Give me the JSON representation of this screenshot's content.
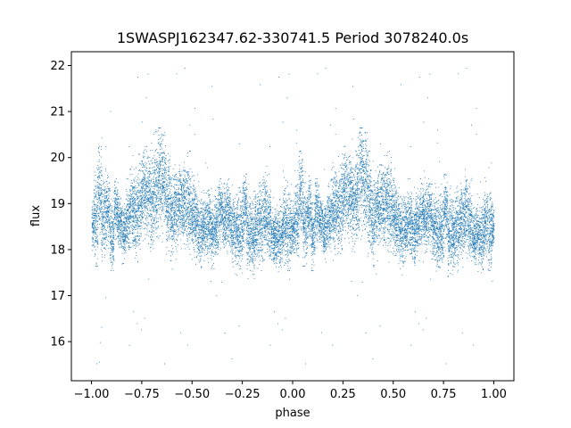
{
  "chart_data": {
    "type": "scatter",
    "title": "1SWASPJ162347.62-330741.5 Period 3078240.0s",
    "xlabel": "phase",
    "ylabel": "flux",
    "xlim": [
      -1.1,
      1.1
    ],
    "ylim": [
      15.15,
      22.3
    ],
    "x_ticks": [
      -1.0,
      -0.75,
      -0.5,
      -0.25,
      0.0,
      0.25,
      0.5,
      0.75,
      1.0
    ],
    "x_tick_labels": [
      "−1.00",
      "−0.75",
      "−0.50",
      "−0.25",
      "0.00",
      "0.25",
      "0.50",
      "0.75",
      "1.00"
    ],
    "y_ticks": [
      16,
      17,
      18,
      19,
      20,
      21,
      22
    ],
    "y_tick_labels": [
      "16",
      "17",
      "18",
      "19",
      "20",
      "21",
      "22"
    ],
    "grid": false,
    "legend": "none",
    "marker_color": "#1f77b4",
    "series": [
      {
        "x": [
          -1.0,
          -0.98,
          -0.96,
          -0.94,
          -0.92,
          -0.9,
          -0.88,
          -0.86,
          -0.84,
          -0.82,
          -0.8,
          -0.78,
          -0.76,
          -0.74,
          -0.72,
          -0.7,
          -0.68,
          -0.66,
          -0.64,
          -0.62,
          -0.6,
          -0.58,
          -0.56,
          -0.54,
          -0.52,
          -0.5,
          -0.48,
          -0.46,
          -0.44,
          -0.42,
          -0.4,
          -0.38,
          -0.36,
          -0.34,
          -0.32,
          -0.3,
          -0.28,
          -0.26,
          -0.24,
          -0.22,
          -0.2,
          -0.18,
          -0.16,
          -0.14,
          -0.12,
          -0.1,
          -0.08,
          -0.06,
          -0.04,
          -0.02,
          0.0,
          0.02,
          0.04,
          0.06,
          0.08,
          0.1,
          0.12,
          0.14,
          0.16,
          0.18,
          0.2,
          0.22,
          0.24,
          0.26,
          0.28,
          0.3,
          0.32,
          0.34,
          0.36,
          0.38,
          0.4,
          0.42,
          0.44,
          0.46,
          0.48,
          0.5,
          0.52,
          0.54,
          0.56,
          0.58,
          0.6,
          0.62,
          0.64,
          0.66,
          0.68,
          0.7,
          0.72,
          0.74,
          0.76,
          0.78,
          0.8,
          0.82,
          0.84,
          0.86,
          0.88,
          0.9,
          0.92,
          0.94,
          0.96,
          0.98,
          1.0
        ],
        "y": [
          18.5,
          18.7,
          19.2,
          18.6,
          18.9,
          18.3,
          18.9,
          18.6,
          18.4,
          18.7,
          18.9,
          18.8,
          19.0,
          19.3,
          19.2,
          19.1,
          19.3,
          19.6,
          19.5,
          19.1,
          18.7,
          18.9,
          19.0,
          19.0,
          19.0,
          18.8,
          18.6,
          18.4,
          18.5,
          18.6,
          18.4,
          18.6,
          18.8,
          18.7,
          18.8,
          18.5,
          18.4,
          18.4,
          18.9,
          18.4,
          18.3,
          18.5,
          18.6,
          18.8,
          18.6,
          18.3,
          18.3,
          18.3,
          18.6,
          18.4,
          18.5,
          18.7,
          19.2,
          18.6,
          18.9,
          18.3,
          18.9,
          18.6,
          18.4,
          18.7,
          18.9,
          18.8,
          19.0,
          19.3,
          19.2,
          19.1,
          19.3,
          19.6,
          19.5,
          19.1,
          18.7,
          18.9,
          19.0,
          19.0,
          19.0,
          18.8,
          18.6,
          18.4,
          18.5,
          18.6,
          18.4,
          18.6,
          18.8,
          18.7,
          18.8,
          18.5,
          18.4,
          18.4,
          18.9,
          18.4,
          18.3,
          18.5,
          18.6,
          18.8,
          18.6,
          18.3,
          18.3,
          18.3,
          18.6,
          18.4,
          18.5
        ],
        "y_spread_low": [
          17.9,
          17.9,
          17.9,
          17.9,
          17.9,
          17.8,
          17.9,
          17.9,
          17.9,
          17.9,
          17.9,
          18.0,
          18.0,
          18.0,
          18.2,
          18.2,
          18.3,
          18.0,
          18.0,
          17.8,
          17.8,
          17.8,
          17.9,
          17.9,
          17.8,
          17.9,
          17.8,
          17.7,
          17.8,
          17.8,
          17.8,
          17.9,
          17.9,
          17.9,
          17.9,
          17.8,
          17.7,
          17.6,
          17.7,
          17.6,
          17.6,
          17.7,
          17.8,
          17.9,
          17.8,
          17.7,
          17.7,
          17.7,
          17.7,
          17.8,
          17.9,
          17.9,
          17.9,
          17.9,
          17.9,
          17.8,
          17.9,
          17.9,
          17.9,
          17.9,
          17.9,
          18.0,
          18.0,
          18.0,
          18.2,
          18.2,
          18.3,
          18.0,
          18.0,
          17.8,
          17.8,
          17.8,
          17.9,
          17.9,
          17.8,
          17.9,
          17.8,
          17.7,
          17.8,
          17.8,
          17.8,
          17.9,
          17.9,
          17.9,
          17.9,
          17.8,
          17.7,
          17.6,
          17.7,
          17.6,
          17.6,
          17.7,
          17.8,
          17.9,
          17.8,
          17.7,
          17.7,
          17.7,
          17.7,
          17.8,
          17.9
        ],
        "y_spread_high": [
          19.0,
          20.2,
          20.0,
          19.9,
          19.4,
          19.4,
          19.3,
          19.0,
          19.2,
          19.3,
          19.8,
          19.9,
          19.9,
          20.0,
          20.0,
          20.3,
          20.4,
          20.4,
          20.3,
          19.9,
          19.7,
          19.6,
          19.6,
          19.8,
          19.9,
          19.6,
          19.4,
          19.2,
          19.2,
          19.3,
          19.3,
          19.3,
          19.3,
          19.3,
          19.3,
          19.2,
          19.3,
          19.3,
          19.4,
          19.3,
          19.3,
          19.3,
          19.5,
          19.8,
          19.4,
          19.0,
          19.0,
          19.1,
          19.4,
          19.6,
          19.0,
          19.6,
          19.9,
          19.9,
          19.4,
          19.4,
          19.3,
          19.0,
          19.2,
          19.3,
          19.8,
          19.9,
          19.9,
          20.0,
          20.0,
          20.3,
          20.4,
          20.4,
          20.3,
          19.9,
          19.7,
          19.6,
          19.6,
          19.8,
          19.9,
          19.6,
          19.4,
          19.2,
          19.2,
          19.3,
          19.3,
          19.3,
          19.3,
          19.3,
          19.3,
          19.2,
          19.3,
          19.3,
          19.4,
          19.3,
          19.3,
          19.3,
          19.5,
          19.8,
          19.4,
          19.0,
          19.0,
          19.1,
          19.4,
          19.6,
          19.0
        ]
      }
    ]
  }
}
